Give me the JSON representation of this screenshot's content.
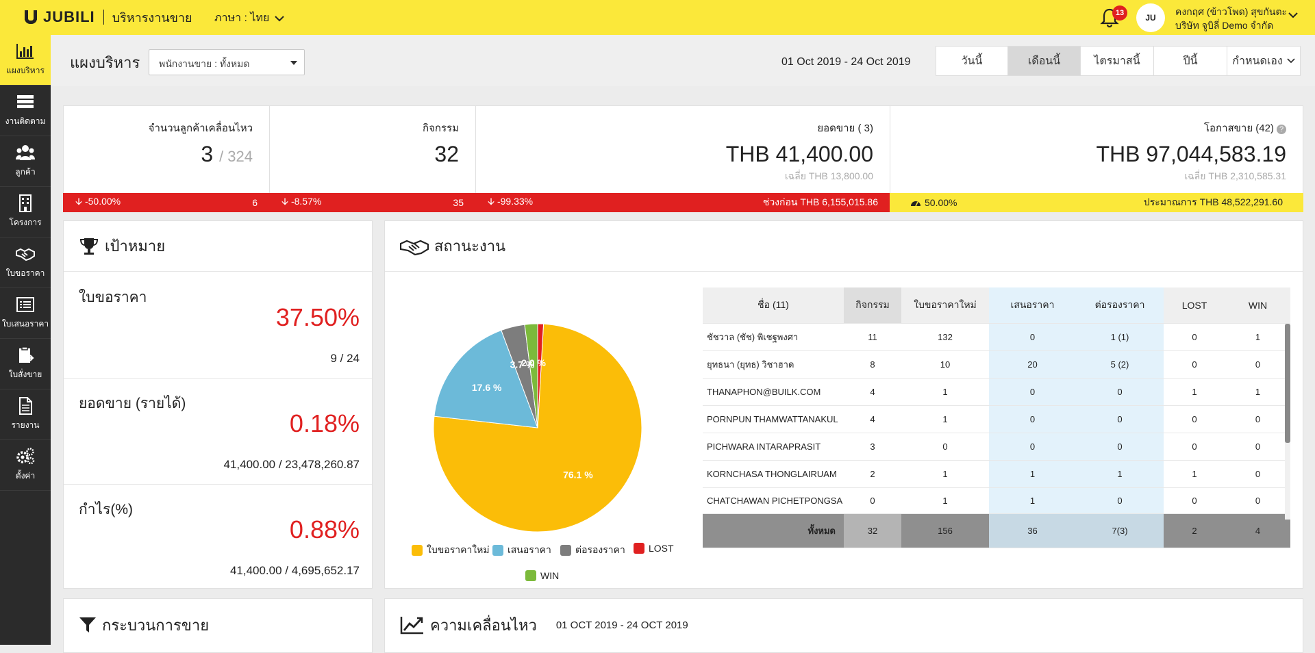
{
  "brand": {
    "name": "JUBILI",
    "module": "บริหารงานขาย"
  },
  "language": {
    "label": "ภาษา : ไทย"
  },
  "notifications": {
    "count": "13"
  },
  "user": {
    "name": "คงกฤศ (ข้าวโพด) สุขกันตะ",
    "company": "บริษัท จูบิลี่ Demo จำกัด",
    "avatar_text": "JU"
  },
  "sidebar": {
    "items": [
      {
        "label": "แผงบริหาร",
        "icon": "bar-chart-icon"
      },
      {
        "label": "งานติดตาม",
        "icon": "server-list-icon"
      },
      {
        "label": "ลูกค้า",
        "icon": "users-icon"
      },
      {
        "label": "โครงการ",
        "icon": "building-icon"
      },
      {
        "label": "ใบขอราคา",
        "icon": "handshake-icon"
      },
      {
        "label": "ใบเสนอราคา",
        "icon": "list-icon"
      },
      {
        "label": "ใบสั่งขาย",
        "icon": "clipboard-icon"
      },
      {
        "label": "รายงาน",
        "icon": "document-icon"
      },
      {
        "label": "ตั้งค่า",
        "icon": "gears-icon"
      }
    ]
  },
  "header": {
    "title": "แผงบริหาร",
    "salesperson_select": "พนักงานขาย : ทั้งหมด",
    "date_range": "01 Oct 2019 - 24 Oct 2019",
    "tabs": [
      "วันนี้",
      "เดือนนี้",
      "ไตรมาสนี้",
      "ปีนี้",
      "กำหนดเอง"
    ],
    "active_tab": "เดือนนี้"
  },
  "kpis": {
    "moving_customers": {
      "label": "จำนวนลูกค้าเคลื่อนไหว",
      "value": "3",
      "total": "/ 324",
      "change": "-50.00%",
      "count": "6"
    },
    "activities": {
      "label": "กิจกรรม",
      "value": "32",
      "change": "-8.57%",
      "count": "35"
    },
    "sales": {
      "label": "ยอดขาย ( 3)",
      "value": "THB 41,400.00",
      "avg": "เฉลี่ย THB 13,800.00",
      "change": "-99.33%",
      "previous": "ช่วงก่อน THB 6,155,015.86"
    },
    "opportunities": {
      "label": "โอกาสขาย (42)",
      "value": "THB 97,044,583.19",
      "avg": "เฉลี่ย THB 2,310,585.31",
      "probability": "50.00%",
      "estimate": "ประมาณการ THB 48,522,291.60"
    }
  },
  "goals": {
    "title": "เป้าหมาย",
    "items": [
      {
        "label": "ใบขอราคา",
        "percent": "37.50%",
        "ratio": "9 / 24"
      },
      {
        "label": "ยอดขาย (รายได้)",
        "percent": "0.18%",
        "ratio": "41,400.00 / 23,478,260.87"
      },
      {
        "label": "กำไร(%)",
        "percent": "0.88%",
        "ratio": "41,400.00 / 4,695,652.17"
      }
    ]
  },
  "status": {
    "title": "สถานะงาน",
    "legend": [
      "ใบขอราคาใหม่",
      "เสนอราคา",
      "ต่อรองราคา",
      "LOST",
      "WIN"
    ],
    "colors": [
      "#fbbd08",
      "#6cbad9",
      "#7d7d7d",
      "#e02020",
      "#7cba3b"
    ],
    "slice_labels": [
      "76.1 %",
      "17.6 %",
      "3.7 %",
      "2.0 %"
    ],
    "table": {
      "headers": [
        "ชื่อ (11)",
        "กิจกรรม",
        "ใบขอราคาใหม่",
        "เสนอราคา",
        "ต่อรองราคา",
        "LOST",
        "WIN"
      ],
      "rows": [
        [
          "ชัชวาล (ชัช) พิเชฐพงศา",
          "11",
          "132",
          "0",
          "1 (1)",
          "0",
          "1"
        ],
        [
          "ยุทธนา (ยุทธ) วิชาฮาด",
          "8",
          "10",
          "20",
          "5 (2)",
          "0",
          "0"
        ],
        [
          "THANAPHON@BUILK.COM",
          "4",
          "1",
          "0",
          "0",
          "1",
          "1"
        ],
        [
          "PORNPUN THAMWATTANAKUL",
          "4",
          "1",
          "0",
          "0",
          "0",
          "0"
        ],
        [
          "PICHWARA INTARAPRASIT",
          "3",
          "0",
          "0",
          "0",
          "0",
          "0"
        ],
        [
          "KORNCHASA THONGLAIRUAM",
          "2",
          "1",
          "1",
          "1",
          "1",
          "0"
        ],
        [
          "CHATCHAWAN PICHETPONGSA",
          "0",
          "1",
          "1",
          "0",
          "0",
          "0"
        ]
      ],
      "total": [
        "ทั้งหมด",
        "32",
        "156",
        "36",
        "7(3)",
        "2",
        "4"
      ]
    }
  },
  "chart_data": {
    "type": "pie",
    "categories": [
      "ใบขอราคาใหม่",
      "เสนอราคา",
      "ต่อรองราคา",
      "WIN",
      "LOST"
    ],
    "values": [
      76.1,
      17.6,
      3.7,
      2.0,
      0.9
    ],
    "colors": [
      "#fbbd08",
      "#6cbad9",
      "#7d7d7d",
      "#7cba3b",
      "#e02020"
    ],
    "legend": "bottom"
  },
  "process": {
    "title": "กระบวนการขาย"
  },
  "movement": {
    "title": "ความเคลื่อนไหว",
    "range": "01 OCT 2019 - 24 OCT 2019"
  }
}
